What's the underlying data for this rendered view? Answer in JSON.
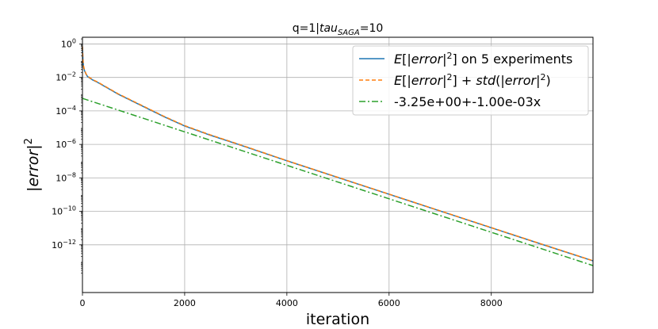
{
  "chart_data": {
    "type": "line",
    "title": {
      "main": "q=1|",
      "italic": "tau",
      "sub": "SAGA",
      "tail": "=10"
    },
    "xlabel": "iteration",
    "ylabel": {
      "prefix": "|",
      "italic": "error",
      "suffix": "|",
      "sup": "2"
    },
    "x_scale": "linear",
    "y_scale": "log",
    "xlim": [
      0,
      9990
    ],
    "ylim_log10": [
      -14.85,
      0.4
    ],
    "x_ticks": [
      {
        "value": 0,
        "label": "0"
      },
      {
        "value": 2000,
        "label": "2000"
      },
      {
        "value": 4000,
        "label": "4000"
      },
      {
        "value": 6000,
        "label": "6000"
      },
      {
        "value": 8000,
        "label": "8000"
      }
    ],
    "y_ticks": [
      {
        "exp": 0,
        "base": "10",
        "sup": "0"
      },
      {
        "exp": -2,
        "base": "10",
        "sup": "−2"
      },
      {
        "exp": -4,
        "base": "10",
        "sup": "−4"
      },
      {
        "exp": -6,
        "base": "10",
        "sup": "−6"
      },
      {
        "exp": -8,
        "base": "10",
        "sup": "−8"
      },
      {
        "exp": -10,
        "base": "10",
        "sup": "−10"
      },
      {
        "exp": -12,
        "base": "10",
        "sup": "−12"
      }
    ],
    "grid": true,
    "legend_position": "top-right",
    "series": [
      {
        "legend": {
          "pre": "",
          "italic": "E",
          "mid": "[|",
          "italic2": "error",
          "post": "|",
          "sup": "2",
          "tail": "] on 5 experiments"
        },
        "color": "#1f77b4",
        "style": "solid",
        "x": [
          0,
          10,
          20,
          40,
          70,
          100,
          150,
          200,
          300,
          500,
          700,
          1000,
          1300,
          1600,
          2000,
          2500,
          3000,
          4000,
          5000,
          6000,
          7000,
          8000,
          9000,
          9990
        ],
        "y_log10": [
          -0.2,
          -1.0,
          -1.35,
          -1.6,
          -1.8,
          -1.95,
          -2.05,
          -2.15,
          -2.3,
          -2.65,
          -3.0,
          -3.45,
          -3.9,
          -4.35,
          -4.9,
          -5.45,
          -5.95,
          -6.98,
          -7.98,
          -8.98,
          -9.98,
          -10.98,
          -11.98,
          -12.96
        ]
      },
      {
        "legend": {
          "pre": "",
          "italic": "E",
          "mid": "[|",
          "italic2": "error",
          "post": "|",
          "sup": "2",
          "tail": "] + ",
          "italic3": "std",
          "tail2": "(|",
          "italic4": "error",
          "tail3": "|",
          "sup2": "2",
          "tail4": ")"
        },
        "color": "#ff7f0e",
        "style": "dashed",
        "x": [
          0,
          10,
          20,
          40,
          70,
          100,
          150,
          200,
          300,
          500,
          700,
          1000,
          1300,
          1600,
          2000,
          2500,
          3000,
          4000,
          5000,
          6000,
          7000,
          8000,
          9000,
          9990
        ],
        "y_log10": [
          -0.15,
          -0.95,
          -1.3,
          -1.55,
          -1.78,
          -1.93,
          -2.03,
          -2.13,
          -2.28,
          -2.63,
          -2.98,
          -3.43,
          -3.88,
          -4.33,
          -4.88,
          -5.43,
          -5.93,
          -6.97,
          -7.97,
          -8.97,
          -9.97,
          -10.97,
          -11.97,
          -12.95
        ]
      },
      {
        "legend": {
          "text": "-3.25e+00+-1.00e-03x"
        },
        "color": "#2ca02c",
        "style": "dashdot",
        "x": [
          0,
          9990
        ],
        "y_log10": [
          -3.25,
          -13.24
        ]
      }
    ]
  }
}
